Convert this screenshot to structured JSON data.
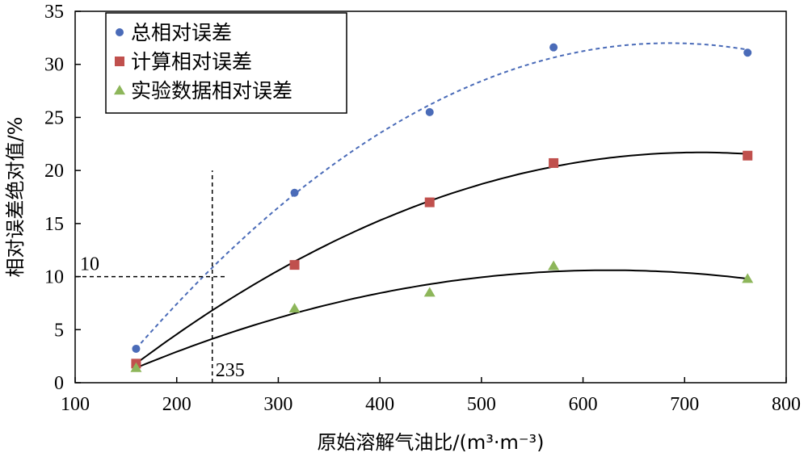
{
  "chart_data": {
    "type": "scatter",
    "title": "",
    "xlabel": "原始溶解气油比/(m³·m⁻³)",
    "ylabel": "相对误差绝对值/%",
    "xlim": [
      100,
      800
    ],
    "ylim": [
      0,
      35
    ],
    "xticks": [
      100,
      200,
      300,
      400,
      500,
      600,
      700,
      800
    ],
    "yticks": [
      0,
      5,
      10,
      15,
      20,
      25,
      30,
      35
    ],
    "grid": false,
    "legend_position": "top-left",
    "x": [
      160,
      316,
      449,
      571,
      762
    ],
    "series": [
      {
        "name": "总相对误差",
        "marker": "circle",
        "color": "#4a6bb8",
        "values": [
          3.2,
          17.9,
          25.5,
          31.6,
          31.1
        ],
        "trendline": {
          "style": "dashed",
          "color": "#4a6bb8",
          "peak_x": 685,
          "peak_y": 32.0
        }
      },
      {
        "name": "计算相对误差",
        "marker": "square",
        "color": "#c0504d",
        "values": [
          1.8,
          11.1,
          17.0,
          20.7,
          21.4
        ],
        "trendline": {
          "style": "solid",
          "color": "#000000",
          "peak_x": 715,
          "peak_y": 21.7
        }
      },
      {
        "name": "实验数据相对误差",
        "marker": "triangle",
        "color": "#8db65a",
        "values": [
          1.4,
          7.0,
          8.5,
          11.0,
          9.8
        ],
        "trendline": {
          "style": "solid",
          "color": "#000000",
          "peak_x": 625,
          "peak_y": 10.6
        }
      }
    ],
    "annotations": [
      {
        "text": "10",
        "x": 100,
        "y": 10,
        "line": "horizontal",
        "line_from_x": 100,
        "line_to_x": 250
      },
      {
        "text": "235",
        "x": 235,
        "y": 0,
        "line": "vertical",
        "line_from_y": 0,
        "line_to_y": 20
      }
    ]
  }
}
